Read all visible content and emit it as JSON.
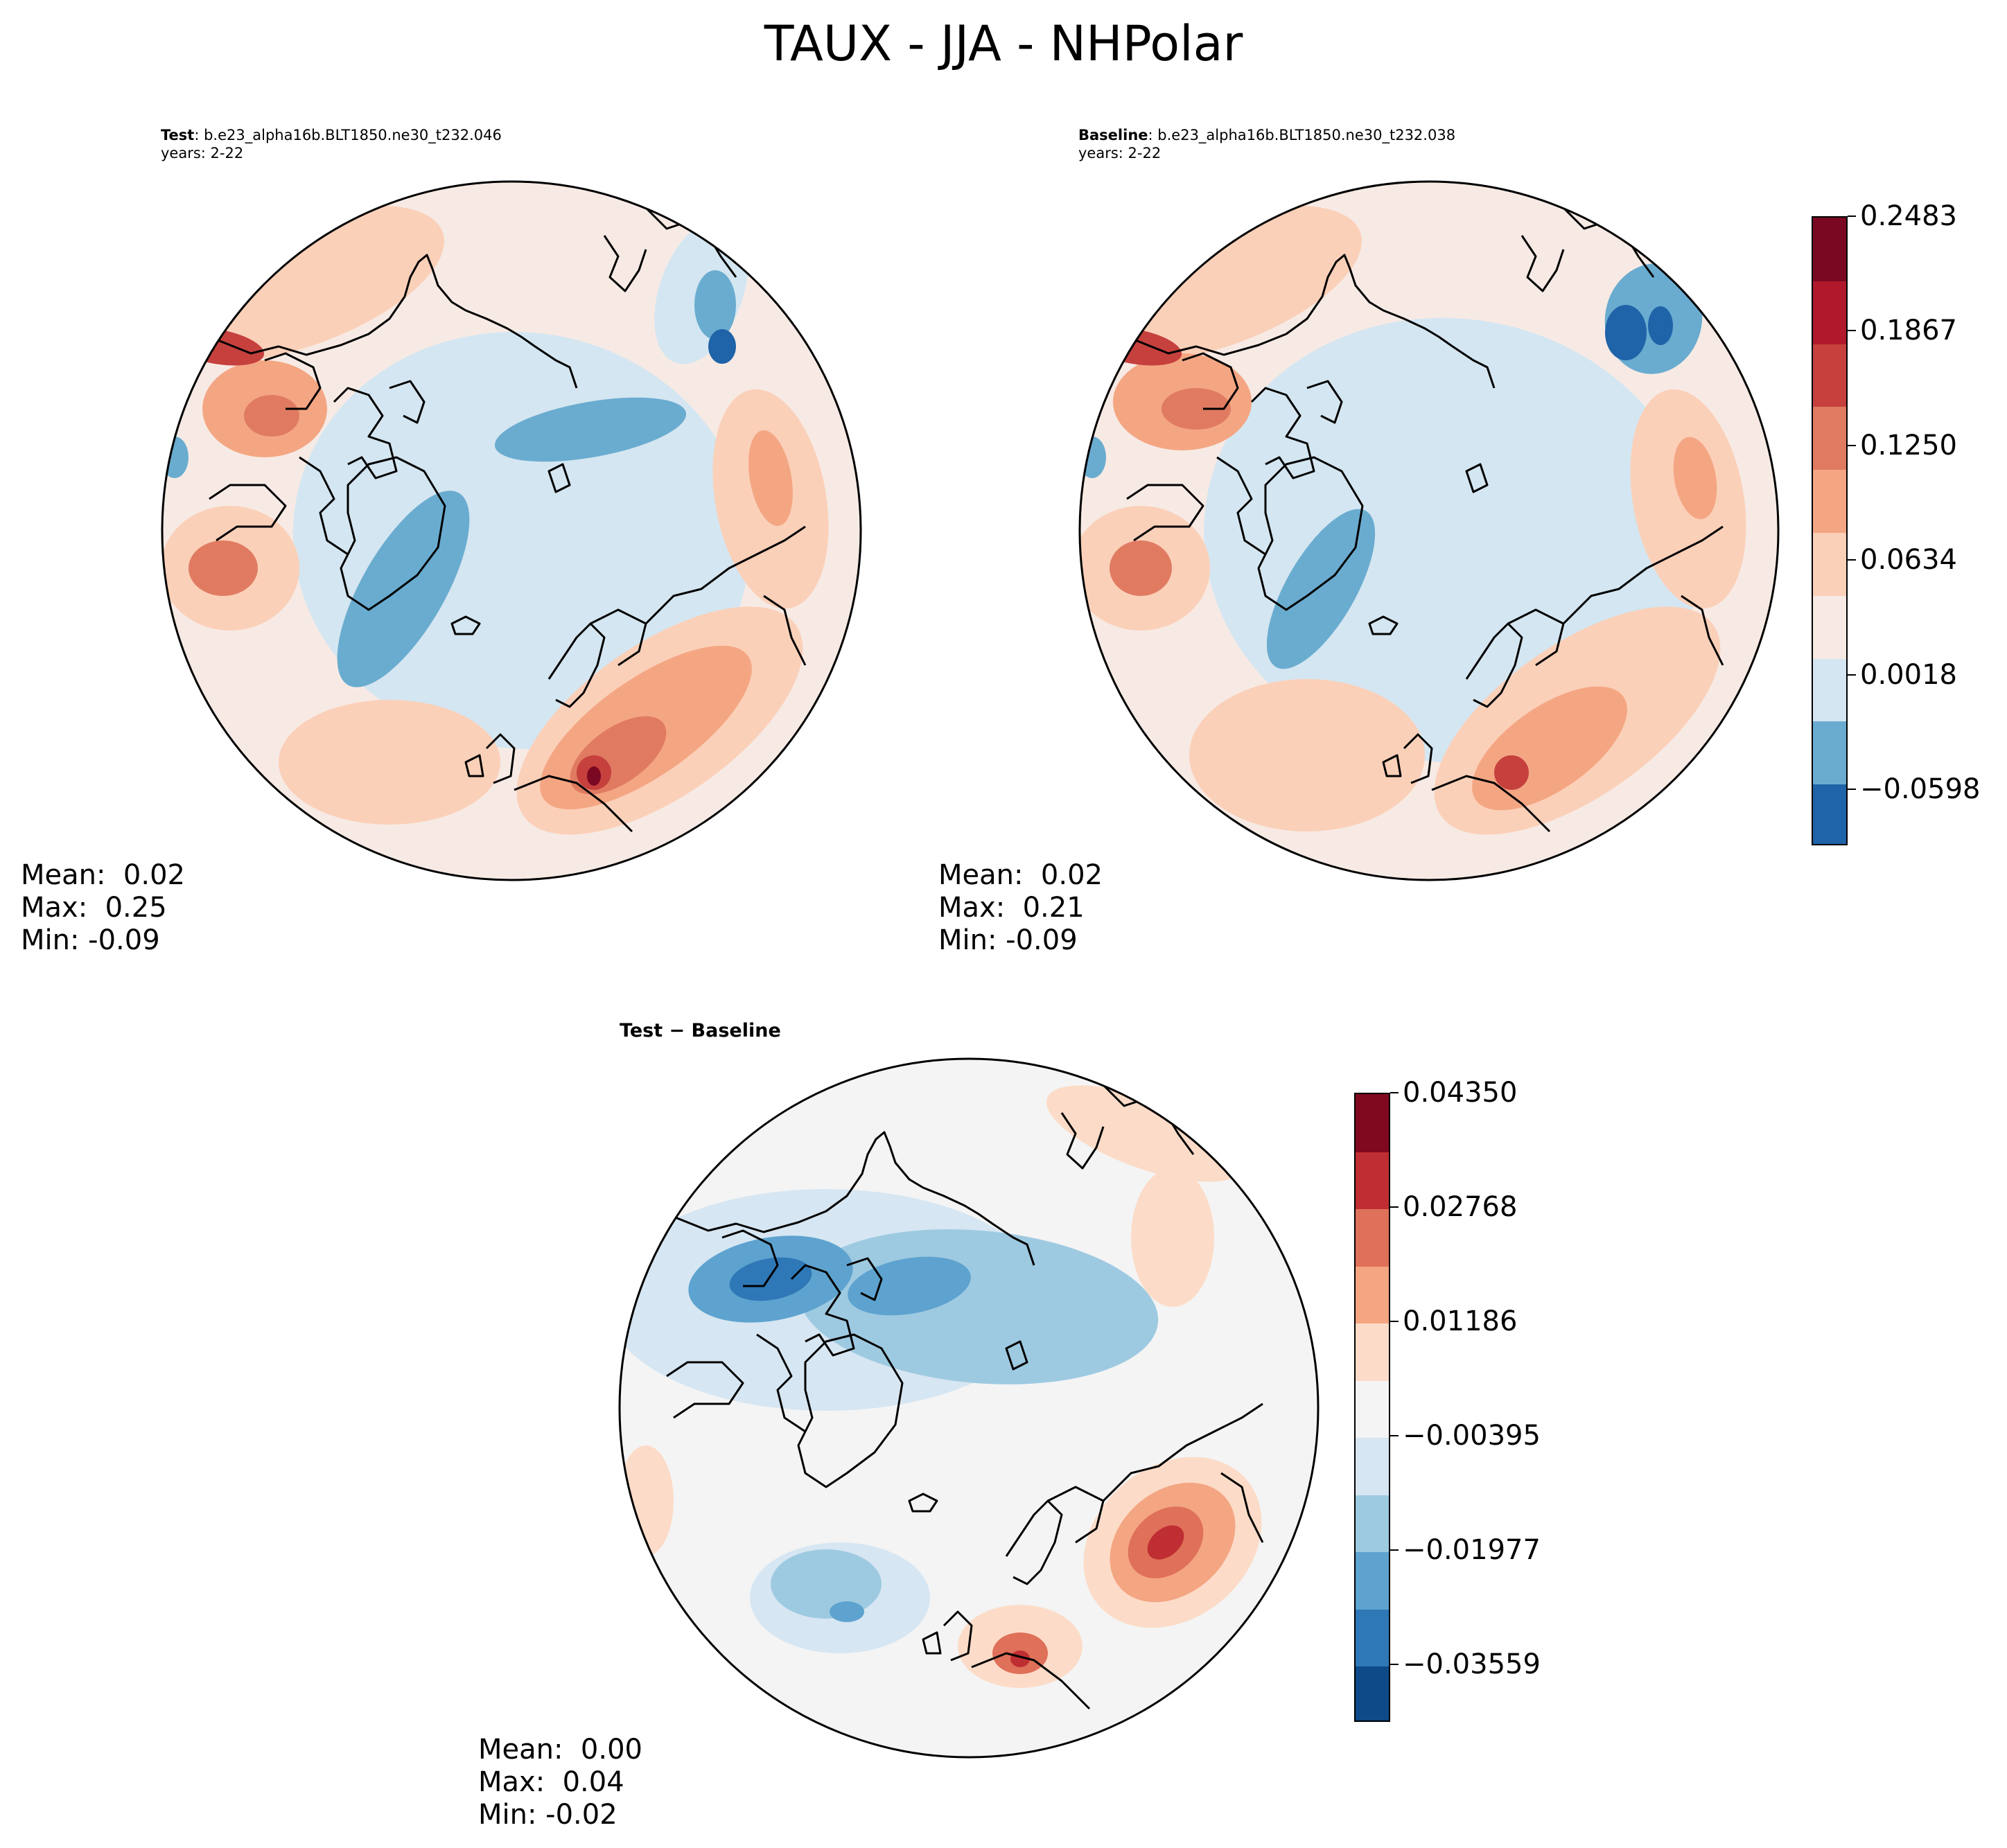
{
  "figure": {
    "title": "TAUX - JJA - NHPolar"
  },
  "panels": {
    "test": {
      "label": "Test",
      "case": "b.e23_alpha16b.BLT1850.ne30_t232.046",
      "years": "years: 2-22",
      "stats": {
        "mean_label": "Mean:",
        "mean": "0.02",
        "max_label": "Max:",
        "max": "0.25",
        "min_label": "Min:",
        "min": "-0.09"
      }
    },
    "baseline": {
      "label": "Baseline",
      "case": "b.e23_alpha16b.BLT1850.ne30_t232.038",
      "years": "years: 2-22",
      "stats": {
        "mean_label": "Mean:",
        "mean": "0.02",
        "max_label": "Max:",
        "max": "0.21",
        "min_label": "Min:",
        "min": "-0.09"
      }
    },
    "difference": {
      "label": "Test − Baseline",
      "stats": {
        "mean_label": "Mean:",
        "mean": "0.00",
        "max_label": "Max:",
        "max": "0.04",
        "min_label": "Min:",
        "min": "-0.02"
      }
    }
  },
  "colors": {
    "main_levels": [
      "#1f63a8",
      "#6aacd0",
      "#d4e6f1",
      "#f7eae4",
      "#fbd0b9",
      "#f4a683",
      "#e07b62",
      "#c6413e",
      "#b2182b",
      "#7a0822"
    ],
    "diff_levels": [
      "#0d4a87",
      "#2e78b7",
      "#5ea3cf",
      "#9ecae1",
      "#d6e6f2",
      "#f4f4f4",
      "#fcdcc8",
      "#f4a582",
      "#df7059",
      "#bf2e32",
      "#80081f"
    ],
    "land_outline": "#000000"
  },
  "chart_data": [
    {
      "type": "heatmap",
      "name": "Test",
      "title": "Test: b.e23_alpha16b.BLT1850.ne30_t232.046",
      "projection": "North polar stereographic",
      "variable": "TAUX",
      "season": "JJA",
      "mean": 0.02,
      "max": 0.25,
      "min": -0.09,
      "colorbar": {
        "shared_with": "Baseline",
        "ticks": [
          0.2483,
          0.1867,
          0.125,
          0.0634,
          0.0018,
          -0.0598
        ],
        "tick_labels": [
          "0.2483",
          "0.1867",
          "0.1250",
          "0.0634",
          "0.0018",
          "−0.0598"
        ],
        "range": [
          -0.09,
          0.2483
        ],
        "n_levels": 10
      }
    },
    {
      "type": "heatmap",
      "name": "Baseline",
      "title": "Baseline: b.e23_alpha16b.BLT1850.ne30_t232.038",
      "projection": "North polar stereographic",
      "variable": "TAUX",
      "season": "JJA",
      "mean": 0.02,
      "max": 0.21,
      "min": -0.09,
      "colorbar": {
        "ticks": [
          0.2483,
          0.1867,
          0.125,
          0.0634,
          0.0018,
          -0.0598
        ],
        "tick_labels": [
          "0.2483",
          "0.1867",
          "0.1250",
          "0.0634",
          "0.0018",
          "−0.0598"
        ],
        "range": [
          -0.09,
          0.2483
        ],
        "n_levels": 10
      }
    },
    {
      "type": "heatmap",
      "name": "Test - Baseline",
      "title": "Test − Baseline",
      "projection": "North polar stereographic",
      "mean": 0.0,
      "max": 0.04,
      "min": -0.02,
      "colorbar": {
        "ticks": [
          0.0435,
          0.02768,
          0.01186,
          -0.00395,
          -0.01977,
          -0.03559
        ],
        "tick_labels": [
          "0.04350",
          "0.02768",
          "0.01186",
          "−0.00395",
          "−0.01977",
          "−0.03559"
        ],
        "range": [
          -0.0435,
          0.0435
        ],
        "n_levels": 11
      }
    }
  ]
}
